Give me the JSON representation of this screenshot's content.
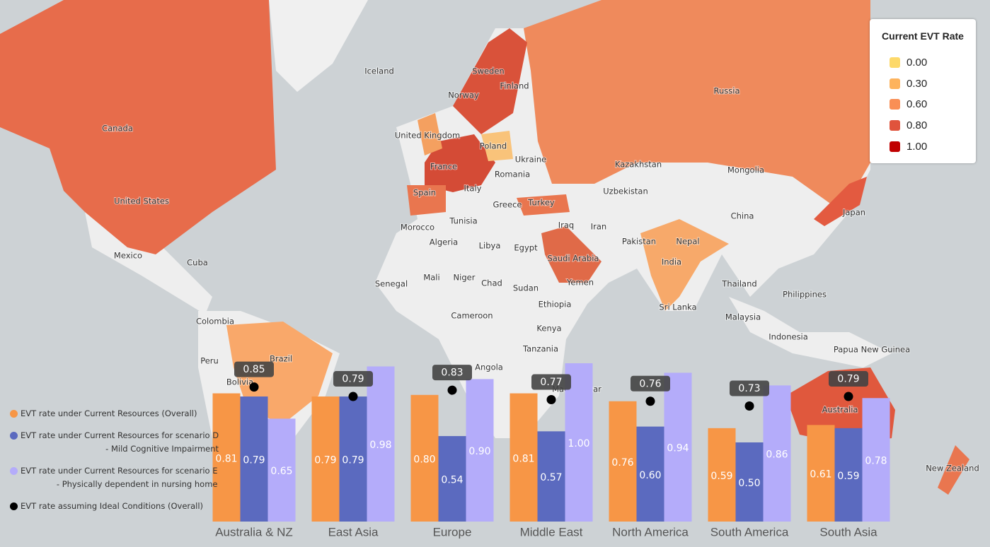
{
  "map": {
    "legend_title": "Current EVT Rate",
    "legend": [
      {
        "value": 0,
        "label": "0.00",
        "color": "#fdd96a"
      },
      {
        "value": 0.3,
        "label": "0.30",
        "color": "#fdb35d"
      },
      {
        "value": 0.6,
        "label": "0.60",
        "color": "#f98f55"
      },
      {
        "value": 0.8,
        "label": "0.80",
        "color": "#e0533c"
      },
      {
        "value": 1,
        "label": "1.00",
        "color": "#c00000"
      }
    ],
    "labels": [
      "Iceland",
      "Sweden",
      "Norway",
      "Finland",
      "Russia",
      "Canada",
      "United Kingdom",
      "Poland",
      "Ukraine",
      "Kazakhstan",
      "Mongolia",
      "France",
      "Romania",
      "Spain",
      "Italy",
      "Greece",
      "Turkey",
      "Uzbekistan",
      "United States",
      "Japan",
      "China",
      "Morocco",
      "Tunisia",
      "Iraq",
      "Iran",
      "Pakistan",
      "Nepal",
      "Algeria",
      "Libya",
      "Egypt",
      "Mexico",
      "Cuba",
      "India",
      "Saudi Arabia",
      "Senegal",
      "Mali",
      "Niger",
      "Chad",
      "Sudan",
      "Yemen",
      "Thailand",
      "Philippines",
      "Sri Lanka",
      "Ethiopia",
      "Colombia",
      "Malaysia",
      "Cameroon",
      "Kenya",
      "Indonesia",
      "Brazil",
      "Peru",
      "Tanzania",
      "Papua New Guinea",
      "Angola",
      "Bolivia",
      "Madagascar",
      "Australia",
      "New Zealand"
    ]
  },
  "chart_data": {
    "type": "bar",
    "categories": [
      "Australia & NZ",
      "East Asia",
      "Europe",
      "Middle East",
      "North America",
      "South America",
      "South Asia"
    ],
    "series": [
      {
        "name": "EVT rate under Current Resources (Overall)",
        "color": "#f79646",
        "values": [
          0.81,
          0.79,
          0.8,
          0.81,
          0.76,
          0.59,
          0.61
        ],
        "value_labels": [
          "0.81",
          "0.79",
          "0.80",
          "0.81",
          "0.76",
          "0.59",
          "0.61"
        ]
      },
      {
        "name": "EVT rate under Current Resources for scenario D\n- Mild Cognitive Impairment",
        "color": "#5b6abf",
        "values": [
          0.79,
          0.79,
          0.54,
          0.57,
          0.6,
          0.5,
          0.59
        ],
        "value_labels": [
          "0.79",
          "0.79",
          "0.54",
          "0.57",
          "0.60",
          "0.50",
          "0.59"
        ]
      },
      {
        "name": "EVT rate under Current Resources for scenario E\n- Physically dependent in nursing home",
        "color": "#b4acfa",
        "values": [
          0.65,
          0.98,
          0.9,
          1.0,
          0.94,
          0.86,
          0.78
        ],
        "value_labels": [
          "0.65",
          "0.98",
          "0.90",
          "1.00",
          "0.94",
          "0.86",
          "0.78"
        ]
      },
      {
        "name": "EVT rate assuming Ideal Conditions (Overall)",
        "color": "#000000",
        "type": "dot",
        "values": [
          0.85,
          0.79,
          0.83,
          0.77,
          0.76,
          0.73,
          0.79
        ]
      }
    ]
  }
}
